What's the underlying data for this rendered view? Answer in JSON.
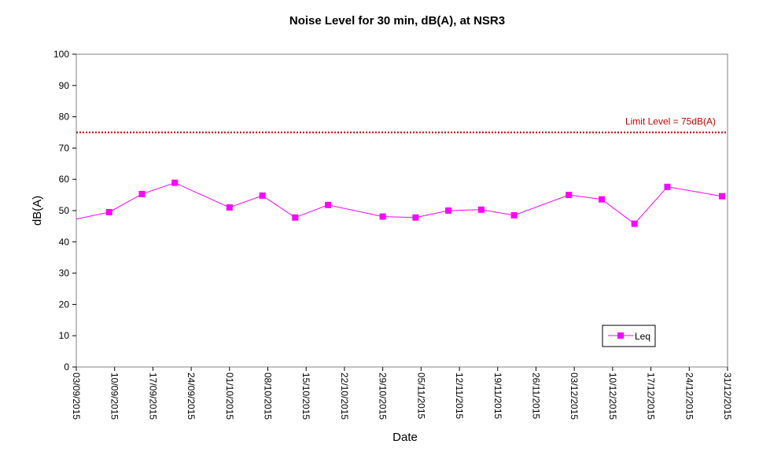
{
  "chart_data": {
    "type": "line",
    "title": "Noise Level for 30 min, dB(A), at NSR3",
    "xlabel": "Date",
    "ylabel": "dB(A)",
    "ylim": [
      0,
      100
    ],
    "yticks": [
      0,
      10,
      20,
      30,
      40,
      50,
      60,
      70,
      80,
      90,
      100
    ],
    "xlim": [
      "2015-09-03",
      "2015-12-31"
    ],
    "xtick_labels": [
      "03/09/2015",
      "10/09/2015",
      "17/09/2015",
      "24/09/2015",
      "01/10/2015",
      "08/10/2015",
      "15/10/2015",
      "22/10/2015",
      "29/10/2015",
      "05/11/2015",
      "12/11/2015",
      "19/11/2015",
      "26/11/2015",
      "03/12/2015",
      "10/12/2015",
      "17/12/2015",
      "24/12/2015",
      "31/12/2015"
    ],
    "grid": false,
    "legend_position": "bottom-right",
    "series": [
      {
        "name": "Leq",
        "color": "#ff00ff",
        "marker": "square",
        "x": [
          "2015-09-09",
          "2015-09-15",
          "2015-09-21",
          "2015-10-01",
          "2015-10-07",
          "2015-10-13",
          "2015-10-19",
          "2015-10-29",
          "2015-11-04",
          "2015-11-10",
          "2015-11-16",
          "2015-11-22",
          "2015-12-02",
          "2015-12-08",
          "2015-12-14",
          "2015-12-20",
          "2015-12-30"
        ],
        "y": [
          49.5,
          55.3,
          58.9,
          51.0,
          54.8,
          47.8,
          51.8,
          48.1,
          47.8,
          50.0,
          50.3,
          48.5,
          55.0,
          53.6,
          45.8,
          57.6,
          54.6
        ],
        "line_enters_from_left_at": 47.3
      }
    ],
    "reference_lines": [
      {
        "label": "Limit Level  = 75dB(A)",
        "y": 75,
        "color": "#c00000",
        "style": "dotted"
      }
    ]
  }
}
